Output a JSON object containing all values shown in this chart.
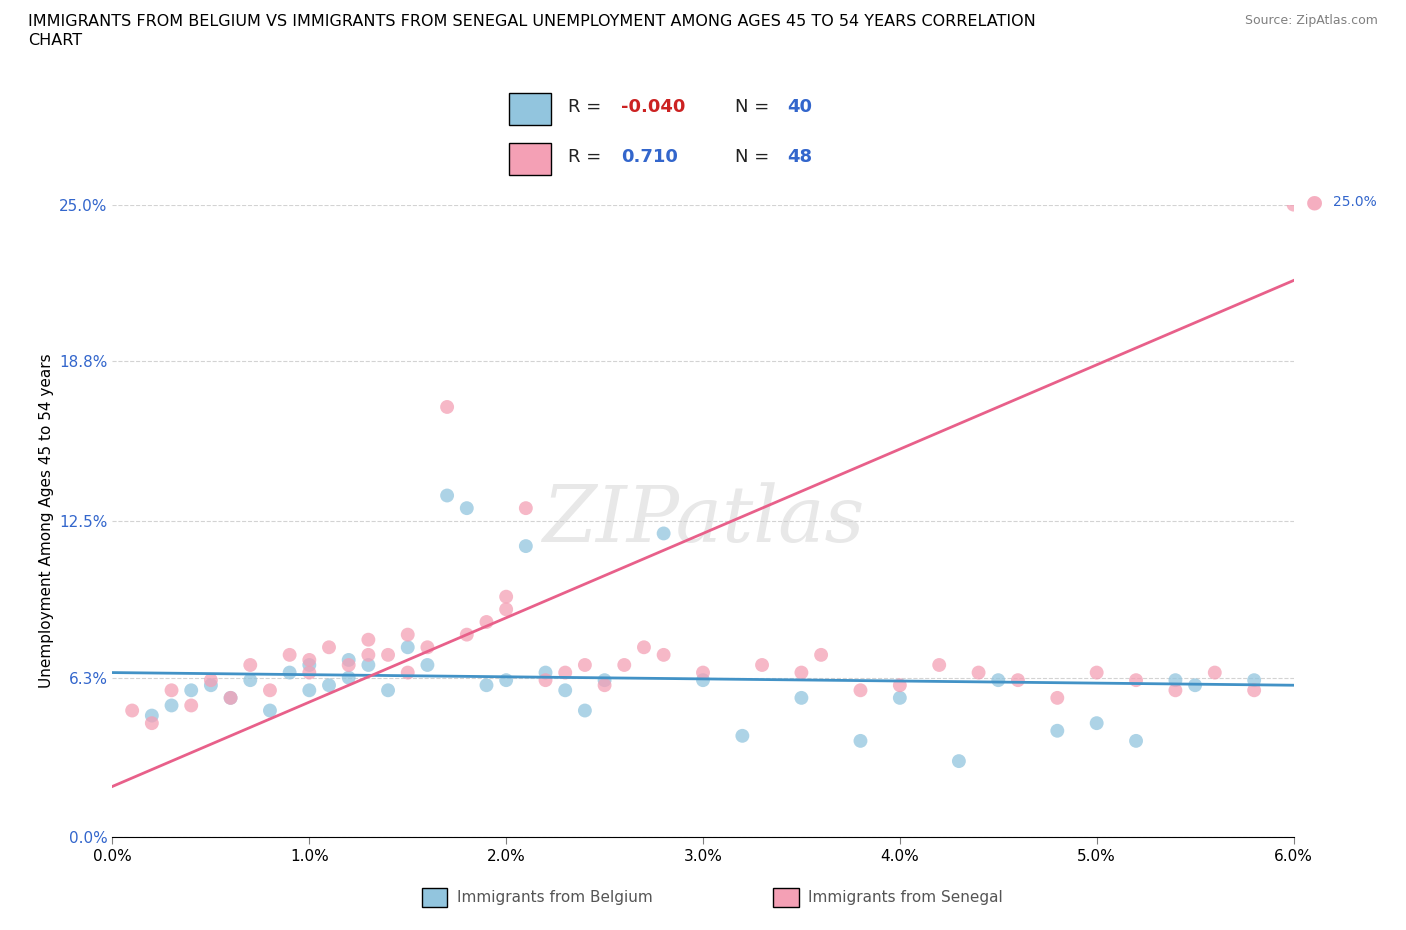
{
  "title_line1": "IMMIGRANTS FROM BELGIUM VS IMMIGRANTS FROM SENEGAL UNEMPLOYMENT AMONG AGES 45 TO 54 YEARS CORRELATION",
  "title_line2": "CHART",
  "source": "Source: ZipAtlas.com",
  "ylabel": "Unemployment Among Ages 45 to 54 years",
  "xlim": [
    0.0,
    0.06
  ],
  "ylim": [
    0.0,
    0.25
  ],
  "yticks": [
    0.0,
    0.063,
    0.125,
    0.188,
    0.25
  ],
  "ytick_labels": [
    "0.0%",
    "6.3%",
    "12.5%",
    "18.8%",
    "25.0%"
  ],
  "xticks": [
    0.0,
    0.01,
    0.02,
    0.03,
    0.04,
    0.05,
    0.06
  ],
  "xtick_labels": [
    "0.0%",
    "1.0%",
    "2.0%",
    "3.0%",
    "4.0%",
    "5.0%",
    "6.0%"
  ],
  "belgium_color": "#92c5de",
  "senegal_color": "#f4a0b5",
  "trend_belgium_color": "#4292c6",
  "trend_senegal_color": "#e8608a",
  "belgium_R": -0.04,
  "belgium_N": 40,
  "senegal_R": 0.71,
  "senegal_N": 48,
  "watermark": "ZIPatlas",
  "legend_r1_color": "#cc2222",
  "legend_n_color": "#3366cc",
  "belgium_x": [
    0.002,
    0.003,
    0.004,
    0.005,
    0.006,
    0.007,
    0.008,
    0.009,
    0.01,
    0.01,
    0.011,
    0.012,
    0.012,
    0.013,
    0.014,
    0.015,
    0.016,
    0.017,
    0.018,
    0.019,
    0.02,
    0.021,
    0.022,
    0.023,
    0.024,
    0.025,
    0.028,
    0.03,
    0.032,
    0.035,
    0.038,
    0.04,
    0.043,
    0.045,
    0.048,
    0.05,
    0.052,
    0.054,
    0.055,
    0.058
  ],
  "belgium_y": [
    0.048,
    0.052,
    0.058,
    0.06,
    0.055,
    0.062,
    0.05,
    0.065,
    0.068,
    0.058,
    0.06,
    0.063,
    0.07,
    0.068,
    0.058,
    0.075,
    0.068,
    0.135,
    0.13,
    0.06,
    0.062,
    0.115,
    0.065,
    0.058,
    0.05,
    0.062,
    0.12,
    0.062,
    0.04,
    0.055,
    0.038,
    0.055,
    0.03,
    0.062,
    0.042,
    0.045,
    0.038,
    0.062,
    0.06,
    0.062
  ],
  "senegal_x": [
    0.001,
    0.002,
    0.003,
    0.004,
    0.005,
    0.006,
    0.007,
    0.008,
    0.009,
    0.01,
    0.01,
    0.011,
    0.012,
    0.013,
    0.013,
    0.014,
    0.015,
    0.015,
    0.016,
    0.017,
    0.018,
    0.019,
    0.02,
    0.02,
    0.021,
    0.022,
    0.023,
    0.024,
    0.025,
    0.026,
    0.027,
    0.028,
    0.03,
    0.033,
    0.035,
    0.036,
    0.038,
    0.04,
    0.042,
    0.044,
    0.046,
    0.048,
    0.05,
    0.052,
    0.054,
    0.056,
    0.058,
    0.06
  ],
  "senegal_y": [
    0.05,
    0.045,
    0.058,
    0.052,
    0.062,
    0.055,
    0.068,
    0.058,
    0.072,
    0.065,
    0.07,
    0.075,
    0.068,
    0.072,
    0.078,
    0.072,
    0.08,
    0.065,
    0.075,
    0.17,
    0.08,
    0.085,
    0.095,
    0.09,
    0.13,
    0.062,
    0.065,
    0.068,
    0.06,
    0.068,
    0.075,
    0.072,
    0.065,
    0.068,
    0.065,
    0.072,
    0.058,
    0.06,
    0.068,
    0.065,
    0.062,
    0.055,
    0.065,
    0.062,
    0.058,
    0.065,
    0.058,
    0.25
  ],
  "bel_trend_x": [
    0.0,
    0.06
  ],
  "bel_trend_y": [
    0.065,
    0.06
  ],
  "sen_trend_x": [
    0.0,
    0.06
  ],
  "sen_trend_y": [
    0.02,
    0.22
  ]
}
